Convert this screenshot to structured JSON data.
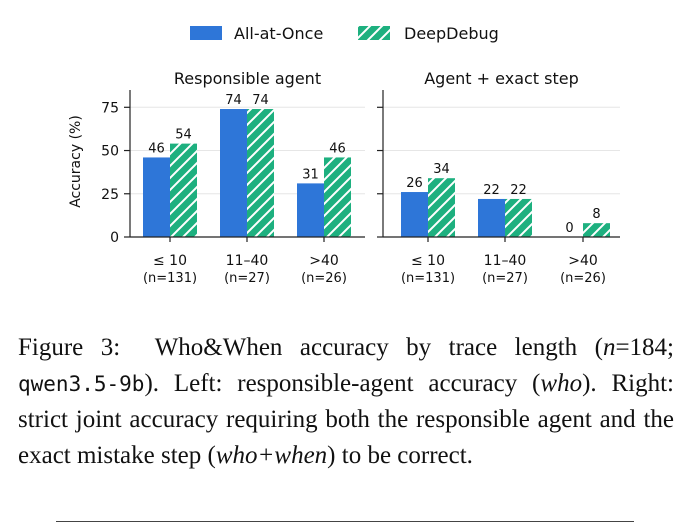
{
  "chart_data": [
    {
      "type": "bar",
      "title": "Responsible agent",
      "ylabel": "Accuracy (%)",
      "ylim": [
        0,
        85
      ],
      "yticks": [
        0,
        25,
        50,
        75
      ],
      "categories": [
        "≤ 10",
        "11–40",
        ">40"
      ],
      "category_counts": [
        "(n=131)",
        "(n=27)",
        "(n=26)"
      ],
      "series": [
        {
          "name": "All-at-Once",
          "values": [
            46,
            74,
            31
          ]
        },
        {
          "name": "DeepDebug",
          "values": [
            54,
            74,
            46
          ]
        }
      ],
      "grid": "horizontal",
      "legend_position": "top-center"
    },
    {
      "type": "bar",
      "title": "Agent + exact step",
      "ylabel": "",
      "ylim": [
        0,
        85
      ],
      "yticks": [
        0,
        25,
        50,
        75
      ],
      "categories": [
        "≤ 10",
        "11–40",
        ">40"
      ],
      "category_counts": [
        "(n=131)",
        "(n=27)",
        "(n=26)"
      ],
      "series": [
        {
          "name": "All-at-Once",
          "values": [
            26,
            22,
            0
          ]
        },
        {
          "name": "DeepDebug",
          "values": [
            34,
            22,
            8
          ]
        }
      ],
      "grid": "horizontal",
      "legend_position": "top-center"
    }
  ],
  "legend": [
    {
      "name": "All-at-Once",
      "color": "#2e76d8",
      "pattern": "solid"
    },
    {
      "name": "DeepDebug",
      "color": "#1db07f",
      "pattern": "hatched"
    }
  ],
  "caption": {
    "label": "Figure 3:",
    "part1": "Who&When accuracy by trace length (",
    "n_var": "n",
    "part2": "=184; ",
    "model": "qwen3.5-9b",
    "part3": ").  Left: responsible-agent accuracy (",
    "who": "who",
    "part4": ").  Right: strict joint accuracy requiring both the responsible agent and the exact mistake step (",
    "whowhen": "who+when",
    "part5": ") to be correct."
  }
}
